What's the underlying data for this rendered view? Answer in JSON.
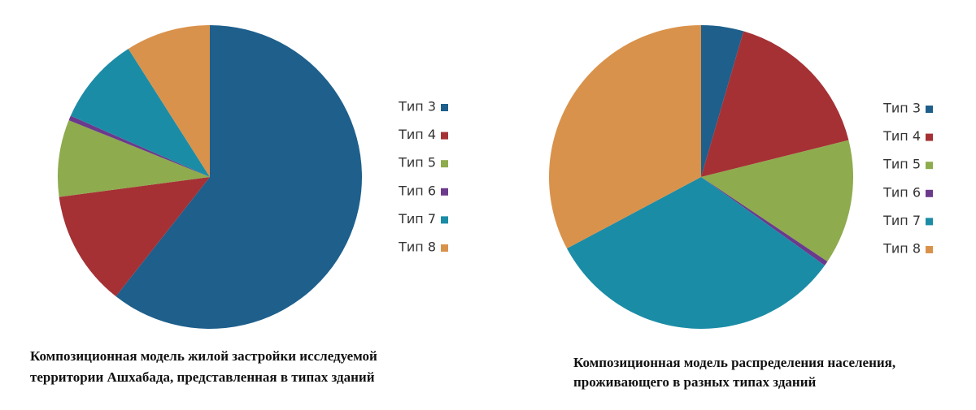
{
  "chart_data": [
    {
      "type": "pie",
      "title": [
        "Композиционная модель жилой застройки исследуемой",
        "территории Ашхабада, представленная в типах зданий"
      ],
      "categories": [
        "Тип 3",
        "Тип 4",
        "Тип 5",
        "Тип 6",
        "Тип 7",
        "Тип 8"
      ],
      "values": [
        60.6,
        12.3,
        8.2,
        0.5,
        9.4,
        9.0
      ],
      "colors": [
        "#1e5f8c",
        "#a53135",
        "#8eab4e",
        "#6b3a8c",
        "#1b8ca6",
        "#d9924b"
      ]
    },
    {
      "type": "pie",
      "title": [
        "Композиционная модель распределения населения,",
        "проживающего в разных типах зданий"
      ],
      "categories": [
        "Тип 3",
        "Тип 4",
        "Тип 5",
        "Тип 6",
        "Тип 7",
        "Тип 8"
      ],
      "values": [
        4.5,
        16.6,
        13.3,
        0.5,
        32.3,
        32.8
      ],
      "colors": [
        "#1e5f8c",
        "#a53135",
        "#8eab4e",
        "#6b3a8c",
        "#1b8ca6",
        "#d9924b"
      ]
    }
  ]
}
